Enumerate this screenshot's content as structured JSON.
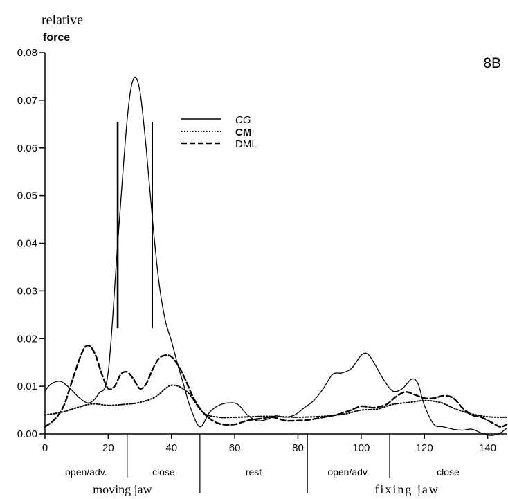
{
  "chart_data": {
    "type": "line",
    "ylabel_line1": "relative",
    "ylabel_line2": "force",
    "panel_label": "8B",
    "xlim": [
      0,
      146
    ],
    "ylim": [
      0,
      0.08
    ],
    "x_ticks": [
      "0",
      "20",
      "40",
      "60",
      "80",
      "100",
      "120",
      "140"
    ],
    "x_tick_values": [
      0,
      20,
      40,
      60,
      80,
      100,
      120,
      140
    ],
    "y_ticks": [
      "0.00",
      "0.01",
      "0.02",
      "0.03",
      "0.04",
      "0.05",
      "0.06",
      "0.07",
      "0.08"
    ],
    "y_tick_values": [
      0,
      0.01,
      0.02,
      0.03,
      0.04,
      0.05,
      0.06,
      0.07,
      0.08
    ],
    "phases": [
      {
        "label": "open/adv.",
        "from": 0,
        "to": 26
      },
      {
        "label": "close",
        "from": 26,
        "to": 49
      },
      {
        "label": "rest",
        "from": 49,
        "to": 83
      },
      {
        "label": "open/adv.",
        "from": 83,
        "to": 109
      },
      {
        "label": "close",
        "from": 109,
        "to": 146
      }
    ],
    "groups": [
      {
        "label": "moving jaw",
        "from": 0,
        "to": 49
      },
      {
        "label": "fixing jaw",
        "from": 83,
        "to": 146
      }
    ],
    "annotation_bars": [
      23,
      34
    ],
    "series": [
      {
        "name": "CG",
        "style": "solid",
        "x": [
          0,
          2,
          5,
          8,
          11,
          14,
          17,
          20,
          23,
          26,
          28,
          30,
          32,
          34,
          36,
          38,
          40,
          42,
          44,
          46,
          49,
          52,
          55,
          58,
          61,
          64,
          67,
          70,
          73,
          76,
          79,
          82,
          85,
          88,
          91,
          94,
          97,
          100,
          102,
          104,
          107,
          110,
          113,
          116,
          118,
          120,
          123,
          126,
          129,
          132,
          135,
          138,
          141,
          144,
          146
        ],
        "y": [
          0.009,
          0.0105,
          0.011,
          0.0095,
          0.0075,
          0.0065,
          0.0085,
          0.013,
          0.04,
          0.066,
          0.0745,
          0.072,
          0.06,
          0.045,
          0.032,
          0.024,
          0.0195,
          0.0145,
          0.01,
          0.0055,
          0.0015,
          0.0045,
          0.006,
          0.0065,
          0.0062,
          0.004,
          0.0028,
          0.003,
          0.0038,
          0.0035,
          0.004,
          0.0055,
          0.007,
          0.0095,
          0.0125,
          0.0128,
          0.0138,
          0.0165,
          0.0168,
          0.015,
          0.0115,
          0.009,
          0.0095,
          0.0115,
          0.0105,
          0.006,
          0.002,
          0.0015,
          0.001,
          0.0008,
          0.001,
          0.0002,
          -0.0003,
          0.0002,
          0.0012
        ]
      },
      {
        "name": "CM",
        "style": "dotted",
        "x": [
          0,
          5,
          10,
          15,
          20,
          25,
          30,
          35,
          40,
          45,
          50,
          55,
          60,
          65,
          70,
          75,
          80,
          85,
          90,
          95,
          100,
          105,
          110,
          115,
          120,
          125,
          130,
          135,
          140,
          146
        ],
        "y": [
          0.004,
          0.0045,
          0.0055,
          0.0063,
          0.006,
          0.0062,
          0.0066,
          0.0078,
          0.0102,
          0.0088,
          0.0045,
          0.0035,
          0.0035,
          0.0036,
          0.0037,
          0.0036,
          0.0035,
          0.0036,
          0.0038,
          0.0042,
          0.005,
          0.0052,
          0.0062,
          0.0066,
          0.007,
          0.0066,
          0.0052,
          0.0042,
          0.0036,
          0.0035
        ]
      },
      {
        "name": "DML",
        "style": "dashed",
        "x": [
          0,
          3,
          6,
          9,
          12,
          14,
          16,
          18,
          20,
          22,
          24,
          26,
          28,
          30,
          32,
          34,
          36,
          38,
          40,
          42,
          44,
          47,
          50,
          53,
          56,
          60,
          64,
          68,
          72,
          76,
          80,
          84,
          88,
          92,
          96,
          100,
          104,
          108,
          111,
          114,
          117,
          120,
          123,
          126,
          129,
          132,
          135,
          138,
          141,
          144,
          146
        ],
        "y": [
          0.0015,
          0.003,
          0.006,
          0.012,
          0.0175,
          0.0185,
          0.0165,
          0.0125,
          0.0095,
          0.01,
          0.0125,
          0.013,
          0.0115,
          0.0095,
          0.0105,
          0.0135,
          0.0158,
          0.0165,
          0.0162,
          0.0145,
          0.012,
          0.0075,
          0.0045,
          0.0028,
          0.002,
          0.002,
          0.0028,
          0.0032,
          0.0035,
          0.0028,
          0.0028,
          0.003,
          0.0035,
          0.004,
          0.0048,
          0.0058,
          0.0055,
          0.0062,
          0.0078,
          0.0088,
          0.0082,
          0.0075,
          0.0075,
          0.008,
          0.0076,
          0.0055,
          0.004,
          0.0035,
          0.0025,
          0.0015,
          0.002
        ]
      }
    ]
  }
}
